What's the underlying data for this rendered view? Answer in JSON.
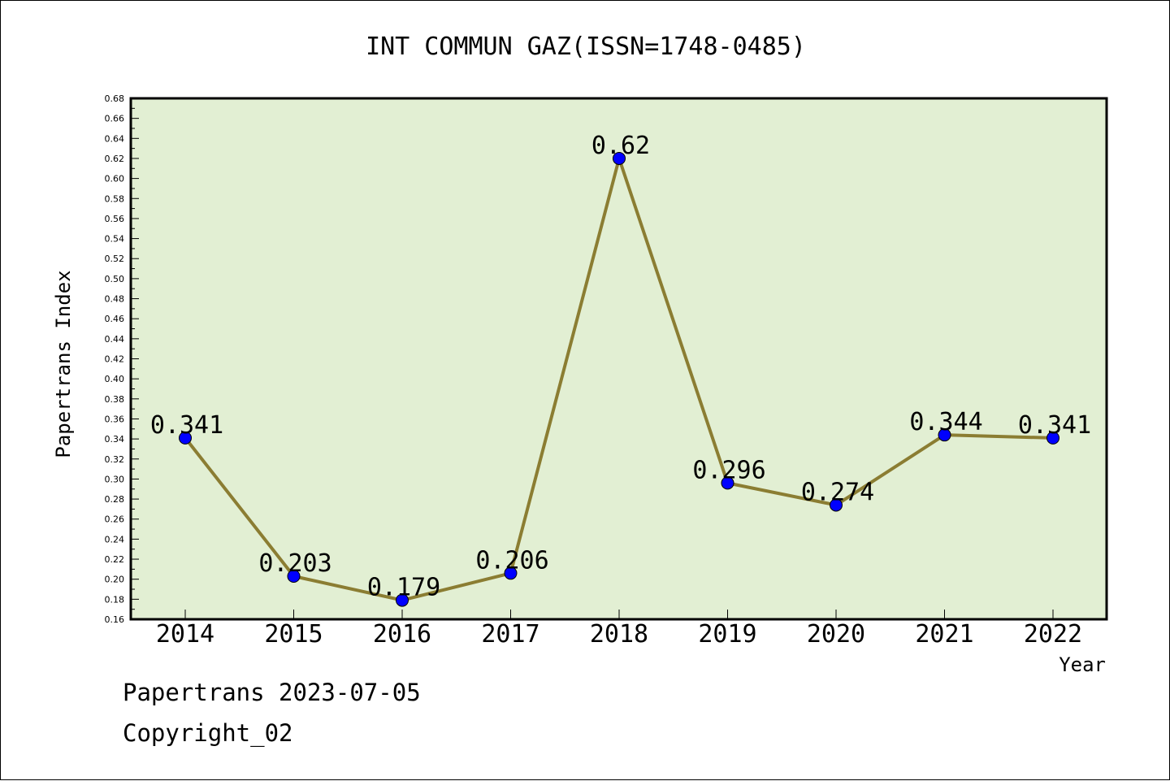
{
  "chart_data": {
    "type": "line",
    "title": "INT COMMUN GAZ(ISSN=1748-0485)",
    "xlabel": "Year",
    "ylabel": "Papertrans Index",
    "categories": [
      "2014",
      "2015",
      "2016",
      "2017",
      "2018",
      "2019",
      "2020",
      "2021",
      "2022"
    ],
    "series": [
      {
        "values": [
          0.341,
          0.203,
          0.179,
          0.206,
          0.62,
          0.296,
          0.274,
          0.344,
          0.341
        ]
      }
    ],
    "data_labels": [
      "0.341",
      "0.203",
      "0.179",
      "0.206",
      "0.62",
      "0.296",
      "0.274",
      "0.344",
      "0.341"
    ],
    "y_ticks": [
      "0.16",
      "0.18",
      "0.20",
      "0.22",
      "0.24",
      "0.26",
      "0.28",
      "0.30",
      "0.32",
      "0.34",
      "0.36",
      "0.38",
      "0.40",
      "0.42",
      "0.44",
      "0.46",
      "0.48",
      "0.50",
      "0.52",
      "0.54",
      "0.56",
      "0.58",
      "0.60",
      "0.62",
      "0.64",
      "0.66",
      "0.68"
    ],
    "ylim": [
      0.16,
      0.68
    ],
    "grid": false,
    "legend": "none",
    "colors": {
      "plot_background": "#e2efd3",
      "line": "#8b7d32",
      "marker": "#0000ff"
    }
  },
  "footer": {
    "line1": "Papertrans 2023-07-05",
    "line2": "Copyright_02"
  }
}
